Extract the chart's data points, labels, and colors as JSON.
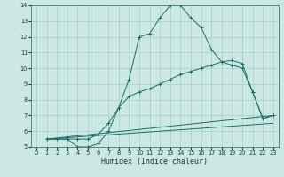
{
  "title": "",
  "xlabel": "Humidex (Indice chaleur)",
  "ylabel": "",
  "background_color": "#cce8e4",
  "grid_color": "#aacfca",
  "line_color": "#1a6e65",
  "xlim": [
    -0.5,
    23.5
  ],
  "ylim": [
    5,
    14
  ],
  "xticks": [
    0,
    1,
    2,
    3,
    4,
    5,
    6,
    7,
    8,
    9,
    10,
    11,
    12,
    13,
    14,
    15,
    16,
    17,
    18,
    19,
    20,
    21,
    22,
    23
  ],
  "yticks": [
    5,
    6,
    7,
    8,
    9,
    10,
    11,
    12,
    13,
    14
  ],
  "line1_x": [
    1,
    2,
    3,
    4,
    5,
    6,
    7,
    8,
    9,
    10,
    11,
    12,
    13,
    14,
    15,
    16,
    17,
    18,
    19,
    20,
    21,
    22,
    23
  ],
  "line1_y": [
    5.5,
    5.5,
    5.5,
    5.0,
    5.0,
    5.2,
    6.0,
    7.5,
    9.3,
    12.0,
    12.2,
    13.2,
    14.0,
    14.0,
    13.2,
    12.6,
    11.2,
    10.4,
    10.2,
    10.0,
    8.5,
    6.8,
    7.0
  ],
  "line2_x": [
    1,
    4,
    5,
    6,
    7,
    8,
    9,
    10,
    11,
    12,
    13,
    14,
    15,
    16,
    17,
    18,
    19,
    20,
    21,
    22,
    23
  ],
  "line2_y": [
    5.5,
    5.5,
    5.5,
    5.8,
    6.5,
    7.5,
    8.2,
    8.5,
    8.7,
    9.0,
    9.3,
    9.6,
    9.8,
    10.0,
    10.2,
    10.4,
    10.5,
    10.3,
    8.5,
    6.8,
    7.0
  ],
  "line3_x": [
    1,
    23
  ],
  "line3_y": [
    5.5,
    7.0
  ],
  "line4_x": [
    1,
    23
  ],
  "line4_y": [
    5.5,
    6.5
  ]
}
